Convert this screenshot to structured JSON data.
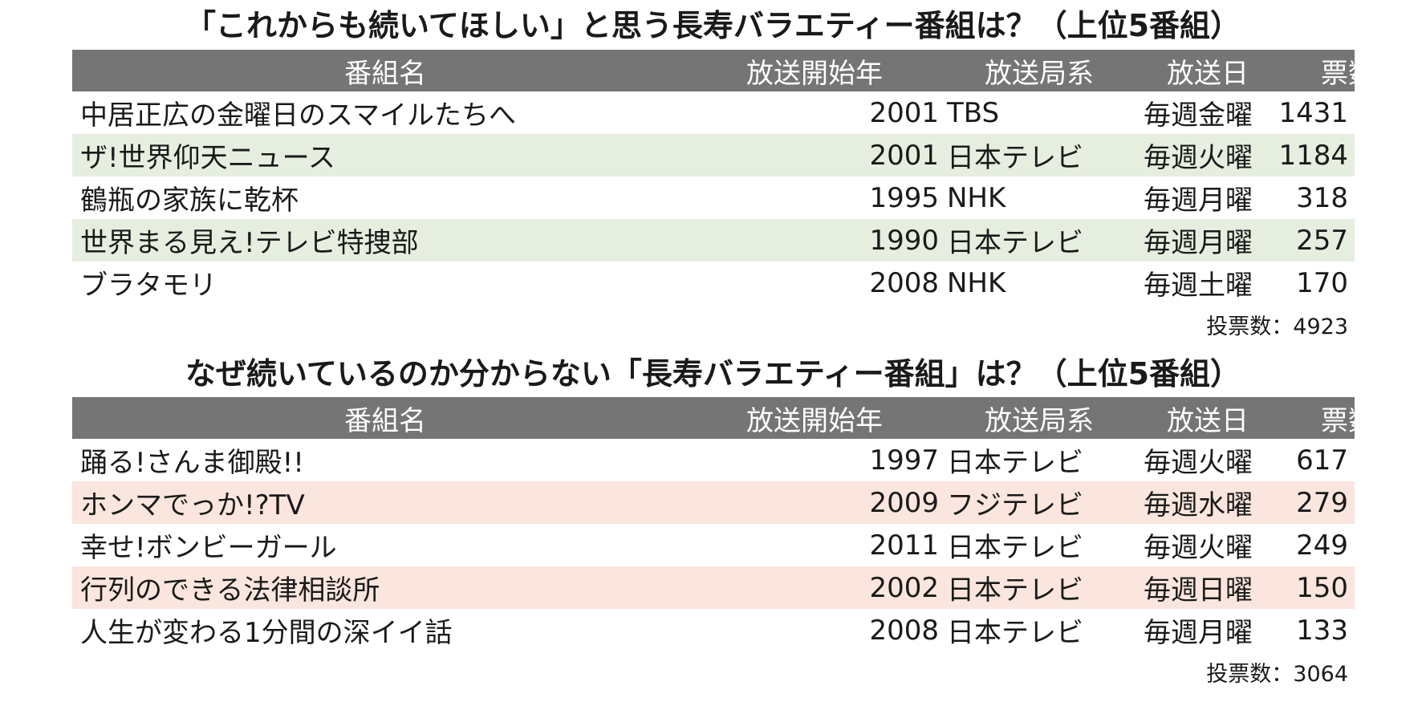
{
  "table1": {
    "title": "「これからも続いてほしい」と思う長寿バラエティー番組は？（上位5番組）",
    "headers": {
      "name": "番組名",
      "year": "放送開始年",
      "station": "放送局系",
      "day": "放送日",
      "votes": "票数"
    },
    "rows": [
      {
        "name": "中居正広の金曜日のスマイルたちへ",
        "year": "2001",
        "station": "TBS",
        "day": "毎週金曜",
        "votes": "1431"
      },
      {
        "name": "ザ!世界仰天ニュース",
        "year": "2001",
        "station": "日本テレビ",
        "day": "毎週火曜",
        "votes": "1184"
      },
      {
        "name": "鶴瓶の家族に乾杯",
        "year": "1995",
        "station": "NHK",
        "day": "毎週月曜",
        "votes": "318"
      },
      {
        "name": "世界まる見え!テレビ特捜部",
        "year": "1990",
        "station": "日本テレビ",
        "day": "毎週月曜",
        "votes": "257"
      },
      {
        "name": "ブラタモリ",
        "year": "2008",
        "station": "NHK",
        "day": "毎週土曜",
        "votes": "170"
      }
    ],
    "total": "投票数：4923",
    "shade_color": "#e6eee0"
  },
  "table2": {
    "title": "なぜ続いているのか分からない「長寿バラエティー番組」は？（上位5番組）",
    "headers": {
      "name": "番組名",
      "year": "放送開始年",
      "station": "放送局系",
      "day": "放送日",
      "votes": "票数"
    },
    "rows": [
      {
        "name": "踊る!さんま御殿!!",
        "year": "1997",
        "station": "日本テレビ",
        "day": "毎週火曜",
        "votes": "617"
      },
      {
        "name": "ホンマでっか!?TV",
        "year": "2009",
        "station": "フジテレビ",
        "day": "毎週水曜",
        "votes": "279"
      },
      {
        "name": "幸せ!ボンビーガール",
        "year": "2011",
        "station": "日本テレビ",
        "day": "毎週火曜",
        "votes": "249"
      },
      {
        "name": "行列のできる法律相談所",
        "year": "2002",
        "station": "日本テレビ",
        "day": "毎週日曜",
        "votes": "150"
      },
      {
        "name": "人生が変わる1分間の深イイ話",
        "year": "2008",
        "station": "日本テレビ",
        "day": "毎週月曜",
        "votes": "133"
      }
    ],
    "total": "投票数：3064",
    "shade_color": "#fae6de"
  },
  "header_color": "#757575"
}
